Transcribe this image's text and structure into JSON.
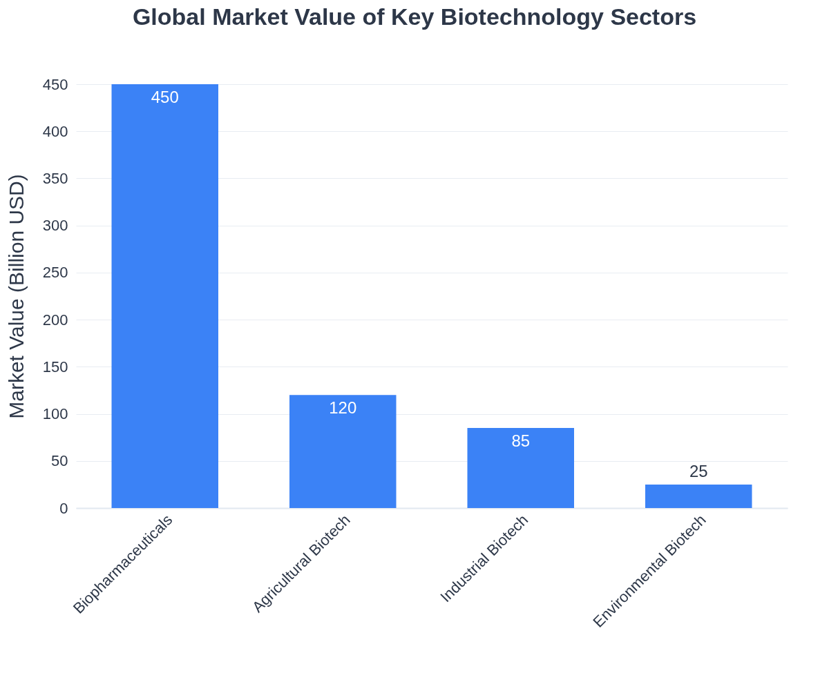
{
  "chart_data": {
    "type": "bar",
    "title": "Global Market Value of Key Biotechnology Sectors",
    "ylabel": "Market Value (Billion USD)",
    "categories": [
      "Biopharmaceuticals",
      "Agricultural Biotech",
      "Industrial Biotech",
      "Environmental Biotech"
    ],
    "values": [
      450,
      120,
      85,
      25
    ],
    "color": "#3b82f6",
    "ylim": [
      0,
      450
    ],
    "yticks": [
      0,
      50,
      100,
      150,
      200,
      250,
      300,
      350,
      400,
      450
    ],
    "grid": "y",
    "data_labels": true
  }
}
